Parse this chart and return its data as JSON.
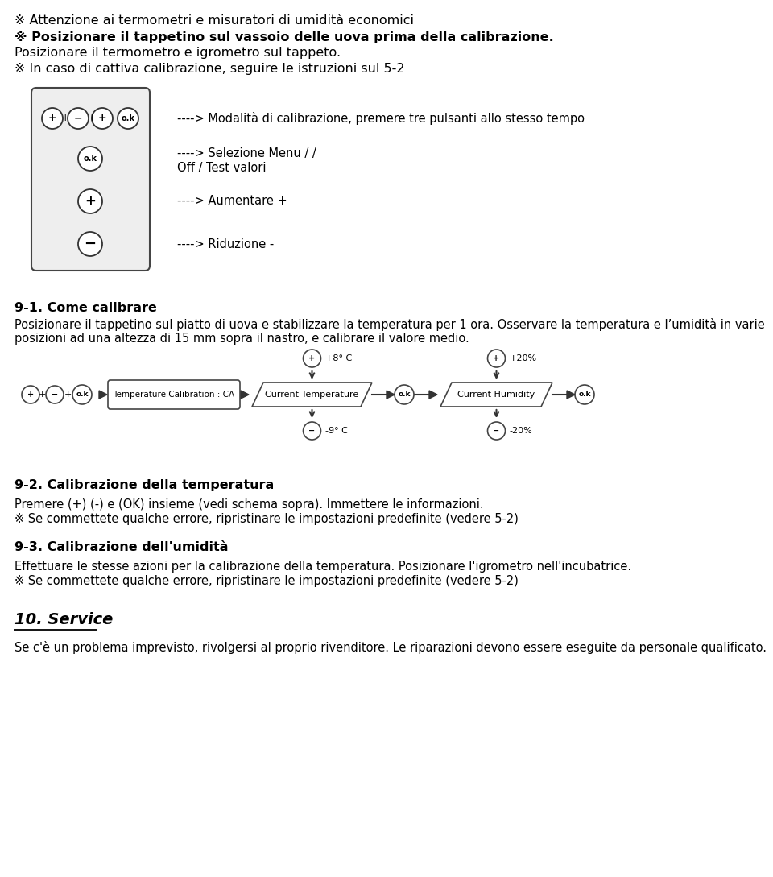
{
  "bg_color": "#ffffff",
  "text_color": "#000000",
  "lines_top": [
    "※ Attenzione ai termometri e misuratori di umidità economici",
    "※ Posizionare il tappetino sul vassoio delle uova prima della calibrazione.",
    "Posizionare il termometro e igrometro sul tappeto.",
    "※ In caso di cattiva calibrazione, seguire le istruzioni sul 5-2"
  ],
  "lines_top_bold": [
    false,
    true,
    false,
    false
  ],
  "arrow_text_line1": "----> Modalità di calibrazione, premere tre pulsanti allo stesso tempo",
  "arrow_text_line2": "----> Selezione Menu / /",
  "arrow_text_line3": "Off / Test valori",
  "arrow_text_line4": "----> Aumentare +",
  "arrow_text_line5": "----> Riduzione -",
  "section_91_title": "9-1. Come calibrare",
  "section_91_body": "Posizionare il tappetino sul piatto di uova e stabilizzare la temperatura per 1 ora. Osservare la temperatura e l'umidità in varie posizioni ad una altezza di 15 mm sopra il nastro, e calibrare il valore medio.",
  "diag_box1": "Temperature Calibration : CA",
  "diag_box2": "Current Temperature",
  "diag_box3": "Current Humidity",
  "diag_plus1": "+8° C",
  "diag_minus1": "-9° C",
  "diag_plus2": "+20%",
  "diag_minus2": "-20%",
  "section_92_title": "9-2. Calibrazione della temperatura",
  "section_92_line1": "Premere (+) (-) e (OK) insieme (vedi schema sopra). Immettere le informazioni.",
  "section_92_line2": "※ Se commettete qualche errore, ripristinare le impostazioni predefinite (vedere 5-2)",
  "section_93_title": "9-3. Calibrazione dell'umidità",
  "section_93_line1": "Effettuare le stesse azioni per la calibrazione della temperatura. Posizionare l'igrometro nell'incubatrice.",
  "section_93_line2": "※ Se commettete qualche errore, ripristinare le impostazioni predefinite (vedere 5-2)",
  "section_10_title": "10. Service",
  "section_10_body": "Se c'è un problema imprevisto, rivolgersi al proprio rivenditore. Le riparazioni devono essere eseguite da personale qualificato."
}
